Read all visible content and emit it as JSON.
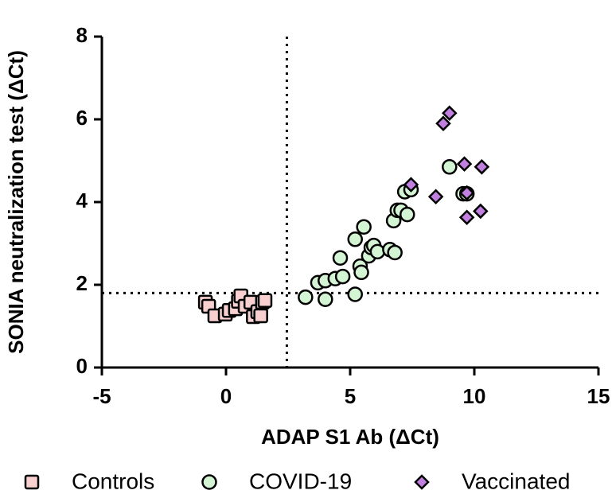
{
  "chart_data": {
    "type": "scatter",
    "x_label": "ADAP  S1 Ab (ΔCt)",
    "y_label": "SONIA neutralization test (ΔCt)",
    "xlim": [
      -5,
      15
    ],
    "xticks": [
      -5,
      0,
      5,
      10,
      15
    ],
    "ylim": [
      0,
      8
    ],
    "yticks": [
      0,
      2,
      4,
      6,
      8
    ],
    "ref_x": 2.45,
    "ref_y": 1.8,
    "legend": "bottom",
    "series": [
      {
        "name": "Controls",
        "color": "#f8d0d0",
        "marker": "square",
        "x": [
          -0.83,
          -0.7,
          -0.45,
          -0.03,
          0.13,
          0.38,
          0.5,
          0.6,
          0.77,
          1.0,
          1.1,
          1.28,
          1.4,
          1.47,
          1.57
        ],
        "values": [
          1.58,
          1.48,
          1.25,
          1.29,
          1.38,
          1.42,
          1.6,
          1.73,
          1.48,
          1.58,
          1.23,
          1.35,
          1.25,
          1.58,
          1.62
        ]
      },
      {
        "name": "COVID-19",
        "color": "#d4f5d4",
        "marker": "circle",
        "x": [
          3.2,
          3.7,
          4.0,
          4.0,
          4.4,
          4.6,
          4.7,
          5.2,
          5.2,
          5.4,
          5.45,
          5.55,
          5.75,
          5.85,
          5.95,
          6.1,
          6.6,
          6.8,
          6.75,
          6.9,
          7.05,
          7.2,
          7.3,
          7.45,
          9.0,
          9.55,
          9.7
        ],
        "values": [
          1.7,
          2.05,
          1.65,
          2.1,
          2.15,
          2.65,
          2.2,
          1.77,
          3.1,
          2.45,
          2.3,
          3.4,
          2.7,
          2.9,
          2.95,
          2.8,
          2.85,
          2.78,
          3.55,
          3.8,
          3.8,
          4.25,
          3.7,
          4.3,
          4.85,
          4.2,
          4.2
        ]
      },
      {
        "name": "Vaccinated",
        "color": "#c17fe0",
        "marker": "diamond",
        "x": [
          9.0,
          8.75,
          8.45,
          7.45,
          9.6,
          9.7,
          9.7,
          10.3,
          10.25
        ],
        "values": [
          6.15,
          5.9,
          4.13,
          4.42,
          4.92,
          4.22,
          3.63,
          4.85,
          3.78
        ]
      }
    ]
  }
}
